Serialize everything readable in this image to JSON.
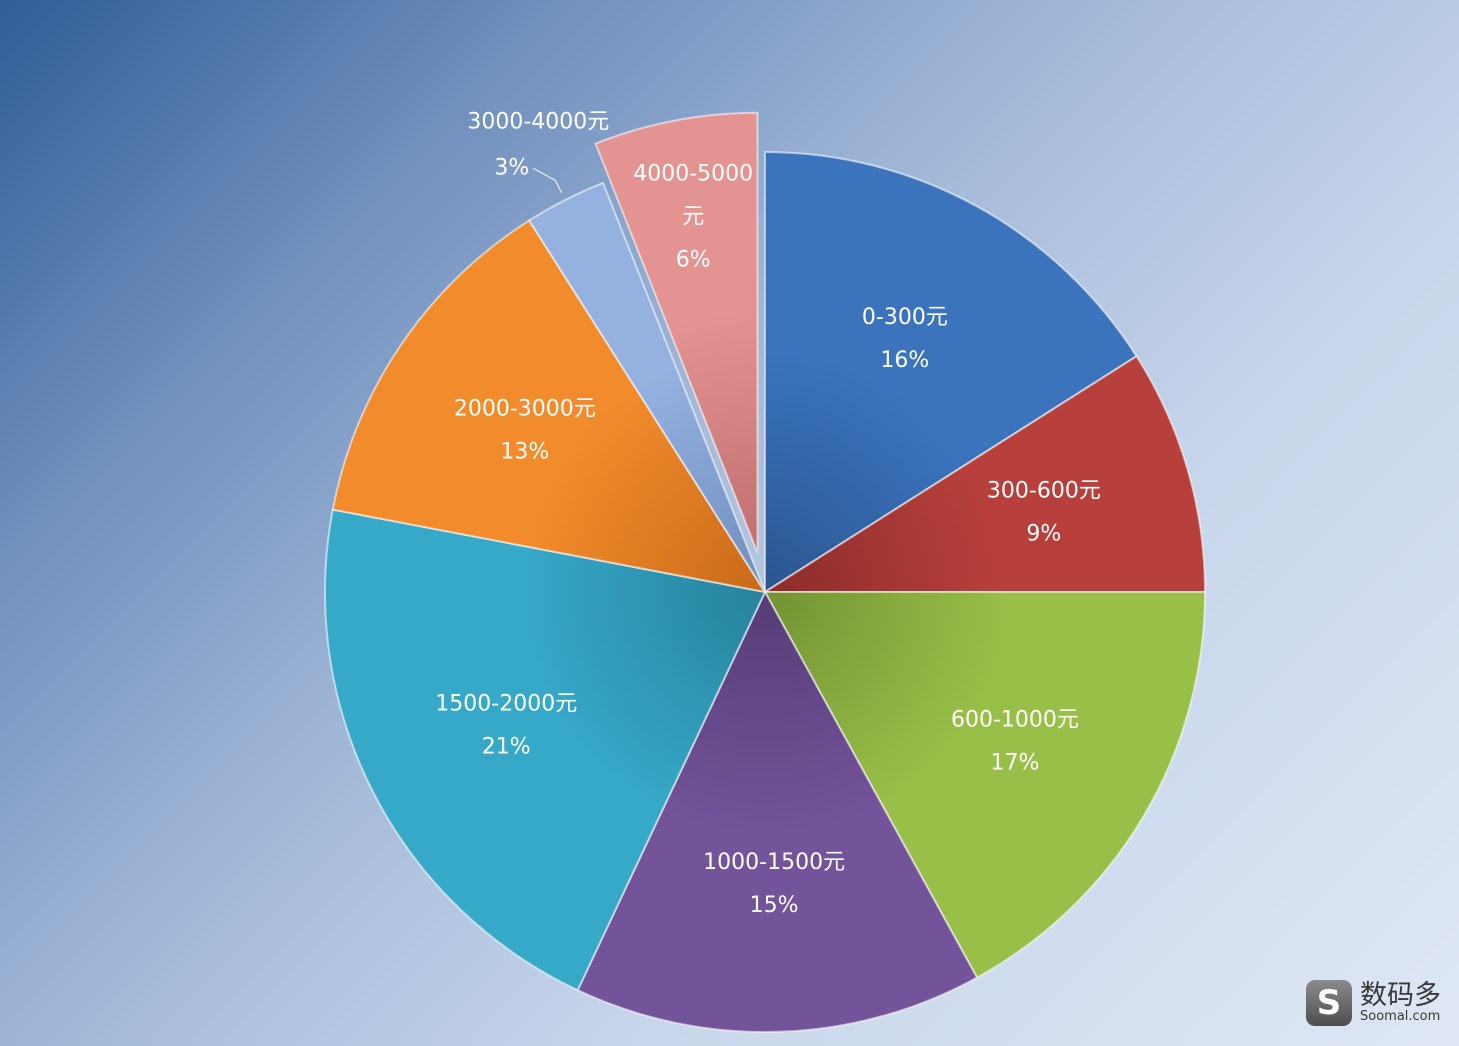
{
  "chart_data": {
    "type": "pie",
    "title": "",
    "slices": [
      {
        "label": "0-300元",
        "value": 16,
        "value_label": "16%",
        "color": "#3b74bd",
        "color_dark": "#2a5690"
      },
      {
        "label": "300-600元",
        "value": 9,
        "value_label": "9%",
        "color": "#b8403c",
        "color_dark": "#8c2c2a"
      },
      {
        "label": "600-1000元",
        "value": 17,
        "value_label": "17%",
        "color": "#98bf48",
        "color_dark": "#739233"
      },
      {
        "label": "1000-1500元",
        "value": 15,
        "value_label": "15%",
        "color": "#73539a",
        "color_dark": "#563d76"
      },
      {
        "label": "1500-2000元",
        "value": 21,
        "value_label": "21%",
        "color": "#36a8c8",
        "color_dark": "#27829c"
      },
      {
        "label": "2000-3000元",
        "value": 13,
        "value_label": "13%",
        "color": "#f28b2c",
        "color_dark": "#c96a19"
      },
      {
        "label": "3000-4000元",
        "value": 3,
        "value_label": "3%",
        "color": "#94b1e0",
        "color_dark": "#6f8dbd"
      },
      {
        "label": "4000-5000元",
        "label_lines": [
          "4000-5000",
          "元"
        ],
        "value": 6,
        "value_label": "6%",
        "color": "#e39391",
        "color_dark": "#c06f6e",
        "exploded": true
      }
    ]
  },
  "watermark": {
    "logo_glyph": "S",
    "name": "数码多",
    "url": "Soomal.com"
  }
}
